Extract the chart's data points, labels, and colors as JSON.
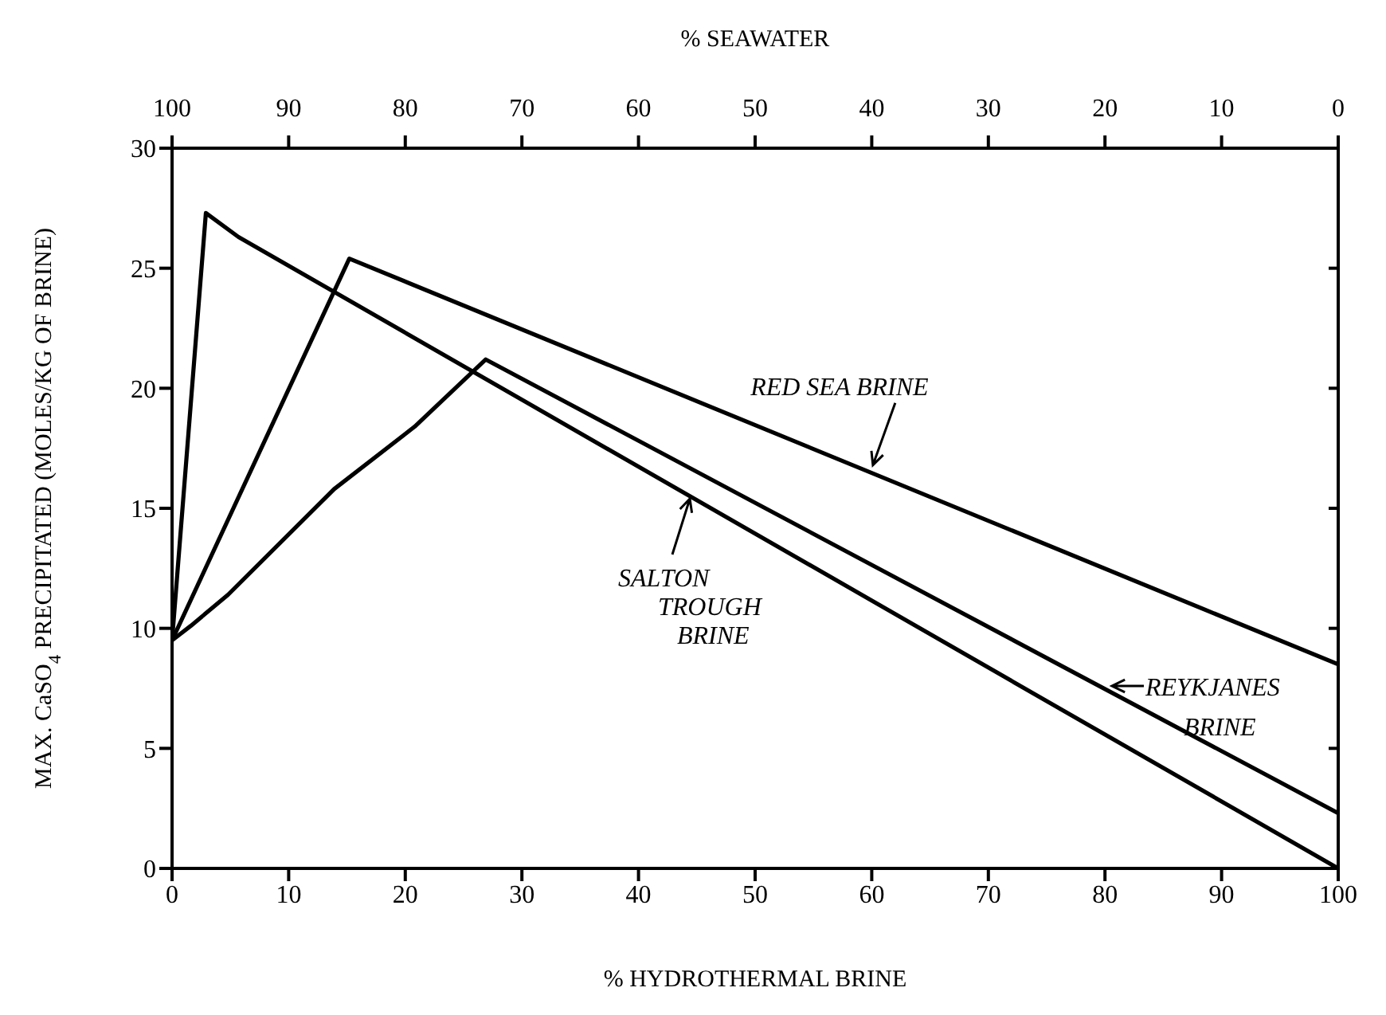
{
  "chart_data": {
    "type": "line",
    "xlabel": "% HYDROTHERMAL BRINE",
    "x2label": "% SEAWATER",
    "ylabel": "MAX. CaSO$_{4}$ PRECIPITATED (MOLES/KG OF BRINE)",
    "series": [
      {
        "color": "#000000",
        "x": [
          0,
          15.2,
          100
        ],
        "values": [
          9.5,
          25.4,
          8.5
        ]
      },
      {
        "color": "#000000",
        "x": [
          0,
          2.9,
          5.7,
          100
        ],
        "values": [
          9.5,
          27.3,
          26.3,
          0
        ]
      },
      {
        "color": "#000000",
        "x": [
          0,
          1.6,
          4.8,
          13.9,
          20.8,
          26.9,
          100
        ],
        "values": [
          9.5,
          10.1,
          11.4,
          15.8,
          18.4,
          21.2,
          2.3
        ]
      }
    ],
    "xlim": [
      0,
      100
    ],
    "xticks": [
      0,
      10,
      20,
      30,
      40,
      50,
      60,
      70,
      80,
      90,
      100
    ],
    "x2lim": [
      100,
      0
    ],
    "x2ticks": [
      100,
      90,
      80,
      70,
      60,
      50,
      40,
      30,
      20,
      10,
      0
    ],
    "ylim": [
      0,
      30
    ],
    "yticks": [
      0,
      5,
      10,
      15,
      20,
      25,
      30
    ],
    "legend": false,
    "annotations": [
      {
        "text": "RED SEA BRINE",
        "x": 60.1,
        "y": 16.8
      },
      {
        "text": "SALTON\nTROUGH\nBRINE",
        "x": 44.4,
        "y": 15.4
      },
      {
        "text": "REYKJANES\nBRINE",
        "x": 80.6,
        "y": 7.6
      }
    ]
  }
}
